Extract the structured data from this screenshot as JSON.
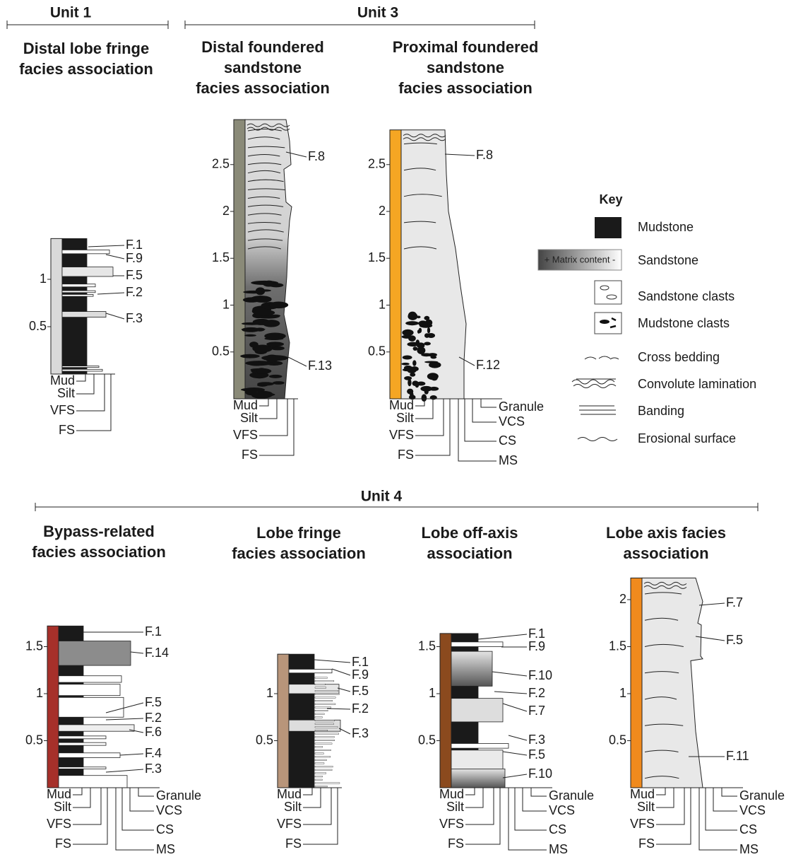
{
  "unit_labels": [
    "Unit 1",
    "Unit 3",
    "Unit 4"
  ],
  "logs": [
    {
      "title": [
        "Distal lobe fringe",
        "facies association"
      ],
      "scale_ticks": [
        0.5,
        1
      ],
      "grain_sizes": [
        "Mud",
        "Silt",
        "VFS",
        "FS"
      ],
      "facies": [
        "F.1",
        "F.9",
        "F.5",
        "F.2",
        "F.3"
      ]
    },
    {
      "title": [
        "Distal foundered",
        "sandstone",
        "facies association"
      ],
      "scale_ticks": [
        0.5,
        1,
        1.5,
        2,
        2.5
      ],
      "grain_sizes": [
        "Mud",
        "Silt",
        "VFS",
        "FS"
      ],
      "facies": [
        "F.8",
        "F.13"
      ]
    },
    {
      "title": [
        "Proximal foundered",
        "sandstone",
        "facies association"
      ],
      "scale_ticks": [
        0.5,
        1,
        1.5,
        2,
        2.5
      ],
      "grain_sizes": [
        "Mud",
        "Silt",
        "VFS",
        "FS",
        "Granule",
        "VCS",
        "CS",
        "MS"
      ],
      "facies": [
        "F.8",
        "F.12"
      ]
    },
    {
      "title": [
        "Bypass-related",
        "facies association"
      ],
      "scale_ticks": [
        0.5,
        1,
        1.5
      ],
      "grain_sizes": [
        "Mud",
        "Silt",
        "VFS",
        "FS",
        "Granule",
        "VCS",
        "CS",
        "MS"
      ],
      "facies": [
        "F.1",
        "F.14",
        "F.5",
        "F.2",
        "F.6",
        "F.4",
        "F.3"
      ]
    },
    {
      "title": [
        "Lobe fringe",
        "facies association"
      ],
      "scale_ticks": [
        0.5,
        1
      ],
      "grain_sizes": [
        "Mud",
        "Silt",
        "VFS",
        "FS"
      ],
      "facies": [
        "F.1",
        "F.9",
        "F.5",
        "F.2",
        "F.3"
      ]
    },
    {
      "title": [
        "Lobe off-axis",
        "association"
      ],
      "scale_ticks": [
        0.5,
        1,
        1.5
      ],
      "grain_sizes": [
        "Mud",
        "Silt",
        "VFS",
        "FS",
        "Granule",
        "VCS",
        "CS",
        "MS"
      ],
      "facies": [
        "F.1",
        "F.9",
        "F.10",
        "F.2",
        "F.7",
        "F.3",
        "F.5",
        "F.10"
      ]
    },
    {
      "title": [
        "Lobe axis facies",
        "association"
      ],
      "scale_ticks": [
        0.5,
        1,
        1.5,
        2
      ],
      "grain_sizes": [
        "Mud",
        "Silt",
        "VFS",
        "FS",
        "Granule",
        "VCS",
        "CS",
        "MS"
      ],
      "facies": [
        "F.7",
        "F.5",
        "F.11"
      ]
    }
  ],
  "key": {
    "title": "Key",
    "gradient_text": "+ Matrix content -",
    "items": [
      "Mudstone",
      "Sandstone",
      "Sandstone clasts",
      "Mudstone clasts",
      "Cross bedding",
      "Convolute lamination",
      "Banding",
      "Erosional surface"
    ]
  }
}
